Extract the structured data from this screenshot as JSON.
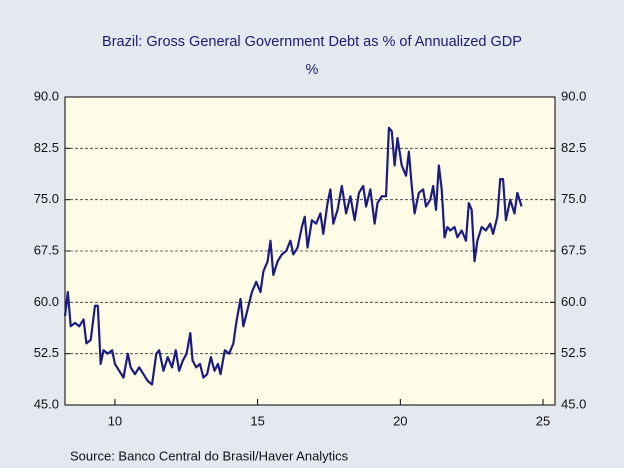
{
  "chart_data": {
    "type": "line",
    "title": "Brazil: Gross General Government Debt as % of Annualized GDP",
    "subtitle": "%",
    "source": "Source:  Banco Central do Brasil/Haver Analytics",
    "color": "#1c1c80",
    "x": [
      8.25,
      8.35,
      8.45,
      8.6,
      8.75,
      8.9,
      9.0,
      9.15,
      9.3,
      9.4,
      9.5,
      9.6,
      9.75,
      9.9,
      10.0,
      10.15,
      10.3,
      10.45,
      10.55,
      10.7,
      10.85,
      11.0,
      11.15,
      11.3,
      11.45,
      11.55,
      11.7,
      11.85,
      12.0,
      12.13,
      12.25,
      12.38,
      12.51,
      12.64,
      12.72,
      12.85,
      12.98,
      13.1,
      13.23,
      13.36,
      13.49,
      13.61,
      13.7,
      13.85,
      14.0,
      14.15,
      14.25,
      14.4,
      14.5,
      14.65,
      14.8,
      14.95,
      15.1,
      15.2,
      15.35,
      15.45,
      15.55,
      15.7,
      15.85,
      16.0,
      16.15,
      16.25,
      16.4,
      16.55,
      16.65,
      16.75,
      16.9,
      17.05,
      17.2,
      17.3,
      17.45,
      17.55,
      17.65,
      17.8,
      17.95,
      18.1,
      18.25,
      18.4,
      18.55,
      18.7,
      18.8,
      18.95,
      19.1,
      19.2,
      19.35,
      19.5,
      19.6,
      19.7,
      19.8,
      19.9,
      20.05,
      20.2,
      20.3,
      20.4,
      20.5,
      20.65,
      20.8,
      20.9,
      21.05,
      21.15,
      21.25,
      21.35,
      21.45,
      21.55,
      21.65,
      21.75,
      21.9,
      22.0,
      22.15,
      22.3,
      22.4,
      22.5,
      22.6,
      22.7,
      22.85,
      23.0,
      23.15,
      23.25,
      23.4,
      23.5,
      23.6,
      23.7,
      23.85,
      24.0,
      24.1,
      24.25
    ],
    "values": [
      58,
      61.5,
      56.5,
      57,
      56.5,
      57.5,
      54,
      54.5,
      59.5,
      59.5,
      51,
      53,
      52.5,
      53,
      51,
      50,
      49,
      52.5,
      50.5,
      49.5,
      50.5,
      49.5,
      48.5,
      48,
      52.5,
      53,
      50,
      52,
      50.5,
      53,
      50,
      51.5,
      52.5,
      55.5,
      51.5,
      50.5,
      51,
      49,
      49.5,
      52,
      50,
      51,
      49.5,
      53,
      52.5,
      54,
      57,
      60.5,
      56.5,
      59,
      61.5,
      63,
      61.5,
      64.5,
      66,
      69,
      64,
      66,
      67,
      67.5,
      69,
      67,
      68,
      71,
      72.5,
      68,
      72,
      71.5,
      73,
      70,
      74.5,
      76.5,
      71.5,
      73.5,
      77,
      73,
      75.5,
      72,
      76,
      77,
      74,
      76.5,
      71.5,
      74.5,
      75.5,
      75.5,
      85.5,
      85,
      80,
      84,
      80,
      78.5,
      82,
      77,
      73,
      76,
      76.5,
      74,
      75,
      77,
      73.5,
      80,
      76.5,
      69.5,
      71,
      70.5,
      71,
      69.5,
      70.5,
      69,
      74.5,
      73.5,
      66,
      69,
      71,
      70.5,
      71.5,
      70,
      72.5,
      78,
      78,
      72,
      75,
      73,
      76,
      74
    ],
    "xlim": [
      8.25,
      25.42
    ],
    "xticks": [
      10,
      15,
      20,
      25
    ],
    "ylim": [
      45,
      90
    ],
    "yticks": [
      {
        "value": 45,
        "label": "45.0"
      },
      52.5,
      {
        "value": 60,
        "label": "60.0"
      },
      67.5,
      {
        "value": 75,
        "label": "75.0"
      },
      82.5,
      {
        "value": 90,
        "label": "90.0"
      }
    ],
    "y2lim": [
      45,
      90
    ],
    "y2ticks": [
      {
        "value": 45,
        "label": "45.0"
      },
      52.5,
      {
        "value": 60,
        "label": "60.0"
      },
      67.5,
      {
        "value": 75,
        "label": "75.0"
      },
      82.5,
      {
        "value": 90,
        "label": "90.0"
      }
    ],
    "grid": true
  }
}
